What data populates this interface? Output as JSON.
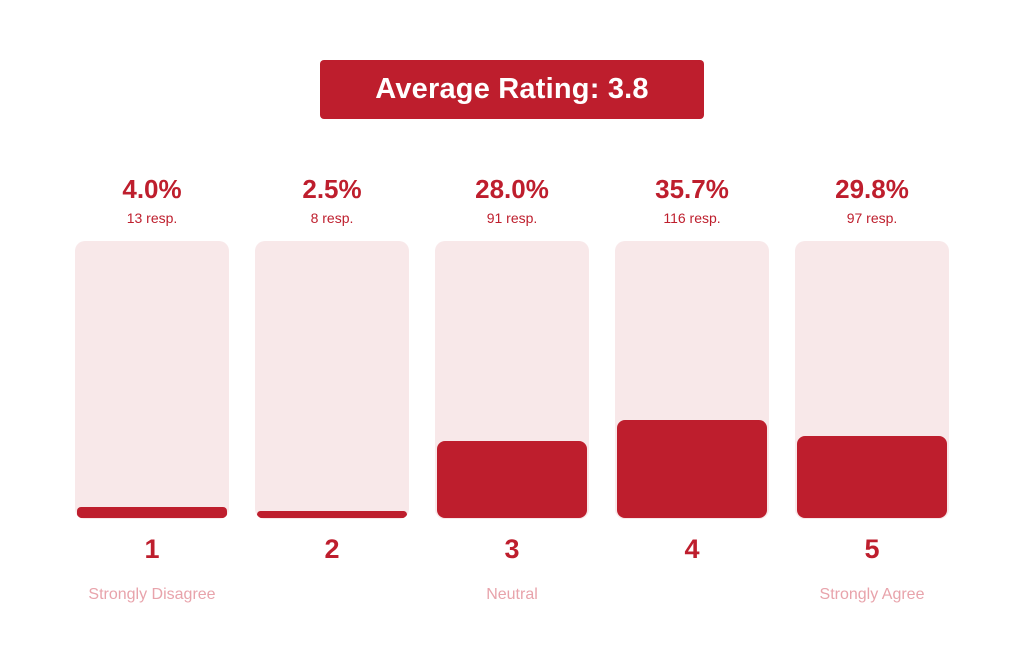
{
  "header": {
    "title": "Average Rating: 3.8"
  },
  "colors": {
    "accent": "#be1e2d",
    "track": "#f8e8e9",
    "anchor_label": "#e8a3ab"
  },
  "chart_data": {
    "type": "bar",
    "title": "Average Rating: 3.8",
    "average": 3.8,
    "categories": [
      "1",
      "2",
      "3",
      "4",
      "5"
    ],
    "values": [
      4.0,
      2.5,
      28.0,
      35.7,
      29.8
    ],
    "ylim": [
      0,
      100
    ],
    "bars": [
      {
        "rating": "1",
        "percent": 4.0,
        "percent_label": "4.0%",
        "responses": 13,
        "responses_label": "13 resp.",
        "anchor": "Strongly Disagree"
      },
      {
        "rating": "2",
        "percent": 2.5,
        "percent_label": "2.5%",
        "responses": 8,
        "responses_label": "8 resp.",
        "anchor": ""
      },
      {
        "rating": "3",
        "percent": 28.0,
        "percent_label": "28.0%",
        "responses": 91,
        "responses_label": "91 resp.",
        "anchor": "Neutral"
      },
      {
        "rating": "4",
        "percent": 35.7,
        "percent_label": "35.7%",
        "responses": 116,
        "responses_label": "116 resp.",
        "anchor": ""
      },
      {
        "rating": "5",
        "percent": 29.8,
        "percent_label": "29.8%",
        "responses": 97,
        "responses_label": "97 resp.",
        "anchor": "Strongly Agree"
      }
    ]
  }
}
